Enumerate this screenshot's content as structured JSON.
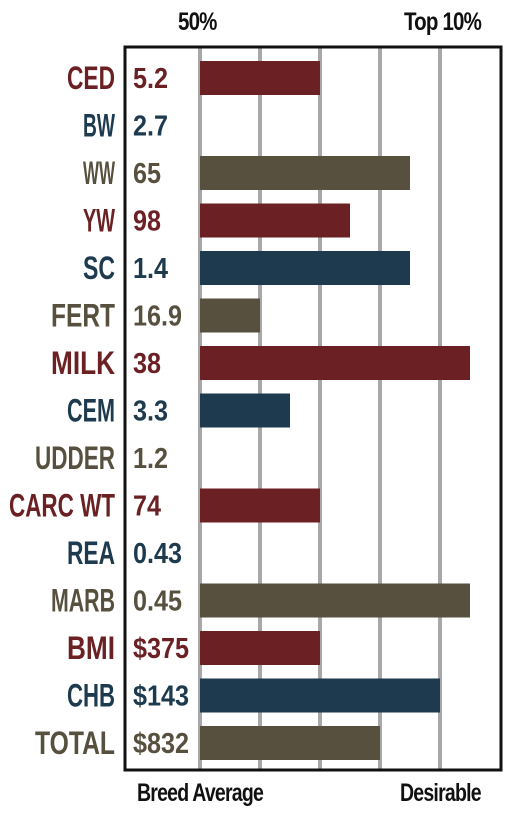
{
  "header": {
    "left_label": "50%",
    "right_label": "Top 10%"
  },
  "footer": {
    "left_label": "Breed Average",
    "right_label": "Desirable"
  },
  "colors": {
    "red": "#6b2124",
    "navy": "#1e3a4e",
    "brown": "#57503f",
    "grid": "#a8a8a8",
    "frame": "#111111"
  },
  "chart_data": {
    "type": "bar",
    "orientation": "horizontal",
    "grid": true,
    "x_ticks": [
      0,
      1,
      2,
      3,
      4
    ],
    "xlim": [
      0,
      4.5
    ],
    "rows": [
      {
        "trait": "CED",
        "value": "5.2",
        "bar": 2.0,
        "color": "red"
      },
      {
        "trait": "BW",
        "value": "2.7",
        "bar": 0,
        "color": "navy"
      },
      {
        "trait": "WW",
        "value": "65",
        "bar": 3.5,
        "color": "brown"
      },
      {
        "trait": "YW",
        "value": "98",
        "bar": 2.5,
        "color": "red"
      },
      {
        "trait": "SC",
        "value": "1.4",
        "bar": 3.5,
        "color": "navy"
      },
      {
        "trait": "FERT",
        "value": "16.9",
        "bar": 1.0,
        "color": "brown"
      },
      {
        "trait": "MILK",
        "value": "38",
        "bar": 4.5,
        "color": "red"
      },
      {
        "trait": "CEM",
        "value": "3.3",
        "bar": 1.5,
        "color": "navy"
      },
      {
        "trait": "UDDER",
        "value": "1.2",
        "bar": 0,
        "color": "brown"
      },
      {
        "trait": "CARC WT",
        "value": "74",
        "bar": 2.0,
        "color": "red"
      },
      {
        "trait": "REA",
        "value": "0.43",
        "bar": 0,
        "color": "navy"
      },
      {
        "trait": "MARB",
        "value": "0.45",
        "bar": 4.5,
        "color": "brown"
      },
      {
        "trait": "BMI",
        "value": "$375",
        "bar": 2.0,
        "color": "red"
      },
      {
        "trait": "CHB",
        "value": "$143",
        "bar": 4.0,
        "color": "navy"
      },
      {
        "trait": "TOTAL",
        "value": "$832",
        "bar": 3.0,
        "color": "brown"
      }
    ]
  }
}
